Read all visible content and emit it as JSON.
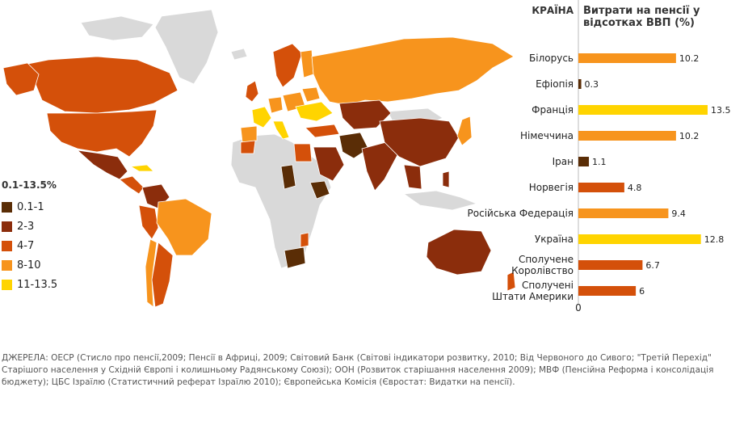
{
  "chart_data": [
    {
      "type": "bar",
      "orientation": "horizontal",
      "column_headers": {
        "country": "КРАЇНА",
        "value": "Витрати на пенсії у відсотках ВВП (%)"
      },
      "categories": [
        "Білорусь",
        "Ефіопія",
        "Франція",
        "Німеччина",
        "Іран",
        "Норвегія",
        "Російська Федерація",
        "Україна",
        "Сполучене Королівство",
        "Сполучені Штати Америки"
      ],
      "category_lines": [
        [
          "Білорусь"
        ],
        [
          "Ефіопія"
        ],
        [
          "Франція"
        ],
        [
          "Німеччина"
        ],
        [
          "Іран"
        ],
        [
          "Норвегія"
        ],
        [
          "Російська Федерація"
        ],
        [
          "Україна"
        ],
        [
          "Сполучене",
          "Королівство"
        ],
        [
          "Сполучені",
          "Штати Америки"
        ]
      ],
      "values": [
        10.2,
        0.3,
        13.5,
        10.2,
        1.1,
        4.8,
        9.4,
        12.8,
        6.7,
        6
      ],
      "value_labels": [
        "10.2",
        "0.3",
        "13.5",
        "10.2",
        "1.1",
        "4.8",
        "9.4",
        "12.8",
        "6.7",
        "6"
      ],
      "xlim": [
        0,
        13.5
      ],
      "axis_zero_label": "0",
      "grid": false
    }
  ],
  "map": {
    "legend_title": "0.1-13.5%",
    "legend_items": [
      {
        "label": "0.1-1",
        "color": "#5a2d06"
      },
      {
        "label": "2-3",
        "color": "#8b2d0c"
      },
      {
        "label": "4-7",
        "color": "#d4500a"
      },
      {
        "label": "8-10",
        "color": "#f7941d"
      },
      {
        "label": "11-13.5",
        "color": "#ffd400"
      }
    ],
    "no_data_color": "#d9d9d9"
  },
  "sources_text": "ДЖЕРЕЛА: ОЕСР (Стисло про пенсії,2009; Пенсії в Африці, 2009; Світовий Банк (Світові індикатори розвитку, 2010; Від Червоного до Сивого; \"Третій Перехід\" Старішого населення у Східній Європі і колишньому Радянському Союзі); ООН (Розвиток старішання населення 2009); МВФ (Пенсійна Реформа і консолідація бюджету); ЦБС Ізраїлю (Статистичний реферат Ізраїлю 2010); Європейська Комісія (Євростат: Видатки на пенсії)."
}
